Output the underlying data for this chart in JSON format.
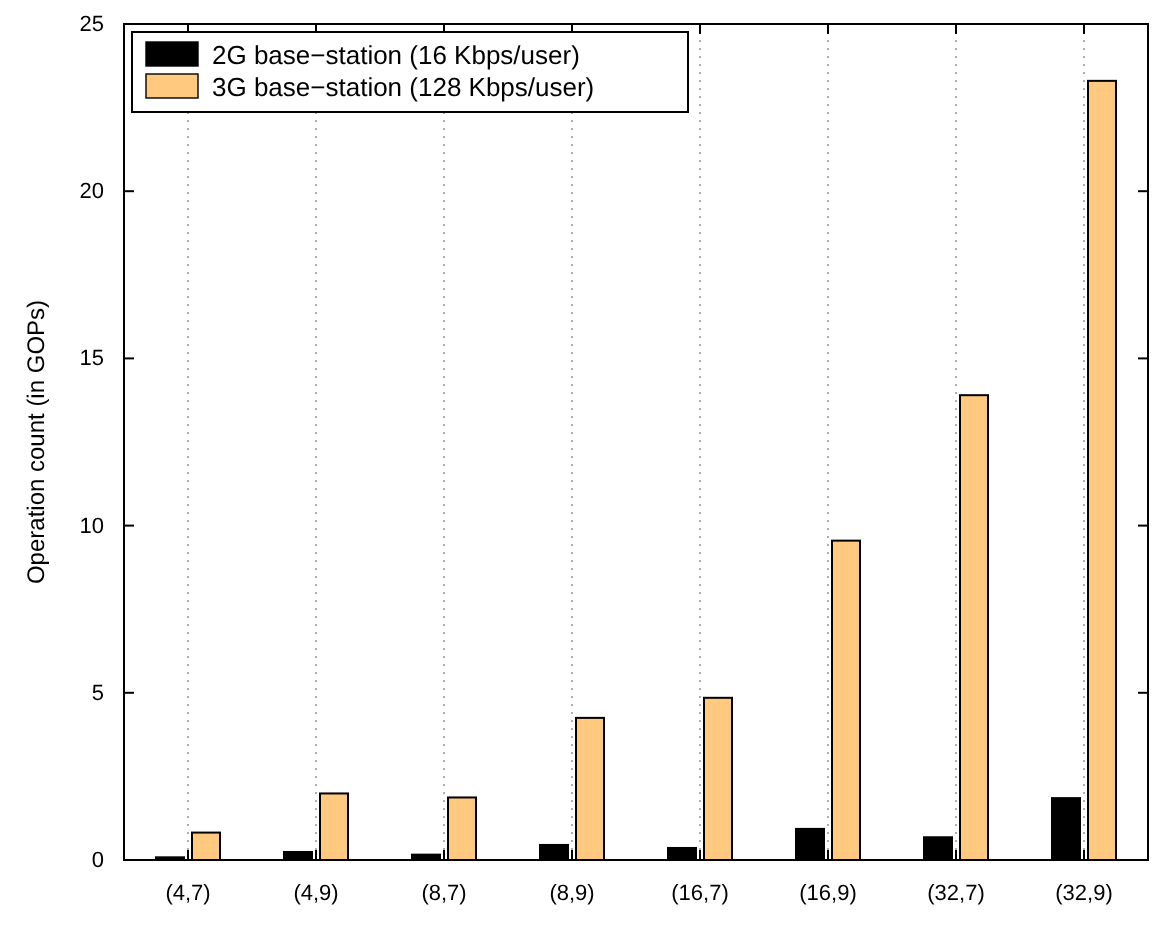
{
  "chart_data": {
    "type": "bar",
    "ylabel": "Operation count (in GOPs)",
    "categories": [
      "(4,7)",
      "(4,9)",
      "(8,7)",
      "(8,9)",
      "(16,7)",
      "(16,9)",
      "(32,7)",
      "(32,9)"
    ],
    "series": [
      {
        "name": "2G base−station (16 Kbps/user)",
        "color": "#000000",
        "values": [
          0.08,
          0.24,
          0.16,
          0.45,
          0.36,
          0.93,
          0.68,
          1.85
        ]
      },
      {
        "name": "3G base−station (128 Kbps/user)",
        "color": "#ffc980",
        "values": [
          0.82,
          1.99,
          1.87,
          4.25,
          4.85,
          9.55,
          13.9,
          23.3
        ]
      }
    ],
    "ylim": [
      0,
      25
    ],
    "yticks": [
      0,
      5,
      10,
      15,
      20,
      25
    ],
    "grid": "x",
    "legend": "top left"
  }
}
